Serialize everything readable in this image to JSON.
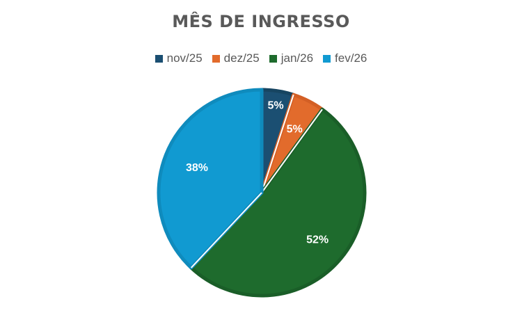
{
  "chart_data": {
    "type": "pie",
    "title": "MÊS DE INGRESSO",
    "legend_position": "top",
    "categories": [
      "nov/25",
      "dez/25",
      "jan/26",
      "fev/26"
    ],
    "values": [
      5,
      5,
      52,
      38
    ],
    "labels": [
      "5%",
      "5%",
      "52%",
      "38%"
    ],
    "colors": [
      "#1b4f72",
      "#e26b2c",
      "#1e6b2d",
      "#119ad1"
    ],
    "border_colors": [
      "#174561",
      "#d35f25",
      "#1a5e28",
      "#0f8bbd"
    ],
    "start_angle_deg": 0,
    "direction": "clockwise"
  }
}
